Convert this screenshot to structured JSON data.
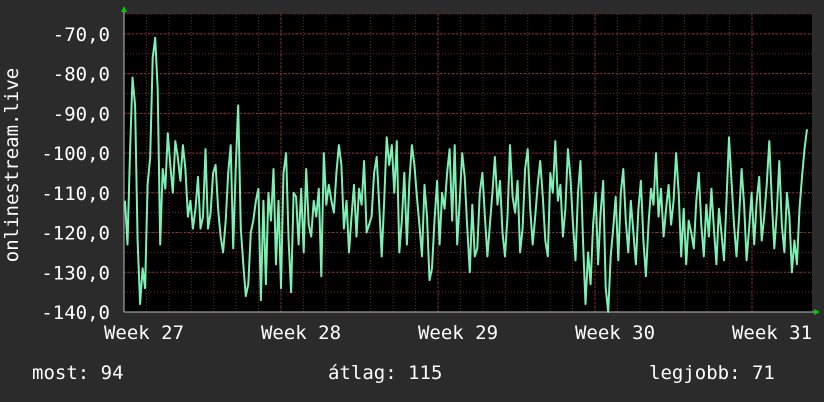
{
  "chart_data": {
    "type": "line",
    "ylabel": "onlinestream.live",
    "ylim": [
      -140,
      -65
    ],
    "yticks": [
      "-70,0",
      "-80,0",
      "-90,0",
      "-100,0",
      "-110,0",
      "-120,0",
      "-130,0",
      "-140,0"
    ],
    "ytick_values": [
      -70,
      -80,
      -90,
      -100,
      -110,
      -120,
      -130,
      -140
    ],
    "x_range": [
      0,
      4.12
    ],
    "xticks": [
      "Week 27",
      "Week 28",
      "Week 29",
      "Week 30",
      "Week 31"
    ],
    "xtick_values": [
      0,
      1,
      2,
      3,
      4
    ],
    "grid": true,
    "colors": {
      "background": "#2b2b2b",
      "plot": "#000000",
      "grid": "#6a2a2a",
      "line": "#7ef0b4",
      "axis_arrow": "#00cc00"
    },
    "series": [
      {
        "values": [
          -112,
          -123,
          -100,
          -81,
          -88,
          -122,
          -138,
          -129,
          -134,
          -108,
          -101,
          -76,
          -71,
          -84,
          -123,
          -104,
          -109,
          -95,
          -103,
          -110,
          -97,
          -101,
          -107,
          -98,
          -104,
          -116,
          -112,
          -119,
          -114,
          -106,
          -119,
          -116,
          -99,
          -119,
          -115,
          -105,
          -103,
          -114,
          -121,
          -125,
          -117,
          -105,
          -98,
          -124,
          -104,
          -88,
          -119,
          -128,
          -136,
          -133,
          -120,
          -117,
          -112,
          -109,
          -137,
          -112,
          -133,
          -110,
          -117,
          -104,
          -128,
          -112,
          -134,
          -105,
          -100,
          -122,
          -135,
          -110,
          -111,
          -123,
          -109,
          -125,
          -104,
          -118,
          -121,
          -112,
          -116,
          -109,
          -131,
          -100,
          -113,
          -108,
          -112,
          -115,
          -105,
          -98,
          -103,
          -119,
          -112,
          -125,
          -116,
          -108,
          -121,
          -109,
          -113,
          -102,
          -120,
          -118,
          -116,
          -105,
          -101,
          -113,
          -126,
          -112,
          -96,
          -103,
          -98,
          -110,
          -97,
          -125,
          -117,
          -105,
          -123,
          -107,
          -98,
          -103,
          -111,
          -118,
          -126,
          -108,
          -116,
          -132,
          -129,
          -117,
          -107,
          -123,
          -110,
          -114,
          -105,
          -99,
          -117,
          -98,
          -123,
          -112,
          -100,
          -106,
          -119,
          -130,
          -113,
          -126,
          -124,
          -110,
          -105,
          -116,
          -126,
          -118,
          -110,
          -101,
          -113,
          -107,
          -120,
          -126,
          -116,
          -98,
          -111,
          -115,
          -107,
          -125,
          -119,
          -104,
          -99,
          -114,
          -123,
          -116,
          -108,
          -102,
          -111,
          -122,
          -126,
          -105,
          -110,
          -97,
          -112,
          -108,
          -121,
          -114,
          -99,
          -106,
          -118,
          -127,
          -110,
          -102,
          -122,
          -138,
          -125,
          -133,
          -118,
          -110,
          -128,
          -115,
          -107,
          -134,
          -140,
          -126,
          -119,
          -111,
          -127,
          -110,
          -104,
          -117,
          -125,
          -112,
          -120,
          -128,
          -114,
          -107,
          -122,
          -131,
          -118,
          -109,
          -113,
          -100,
          -116,
          -109,
          -121,
          -114,
          -108,
          -118,
          -112,
          -100,
          -110,
          -126,
          -114,
          -128,
          -117,
          -120,
          -124,
          -112,
          -105,
          -118,
          -126,
          -113,
          -121,
          -109,
          -119,
          -128,
          -114,
          -120,
          -127,
          -112,
          -96,
          -107,
          -118,
          -126,
          -116,
          -104,
          -113,
          -127,
          -119,
          -110,
          -123,
          -112,
          -106,
          -122,
          -116,
          -108,
          -97,
          -112,
          -124,
          -115,
          -102,
          -118,
          -125,
          -110,
          -116,
          -130,
          -122,
          -128,
          -114,
          -106,
          -99,
          -94
        ]
      }
    ]
  },
  "legend": {
    "current": "most: 94",
    "average": "átlag: 115",
    "best": "legjobb: 71"
  }
}
